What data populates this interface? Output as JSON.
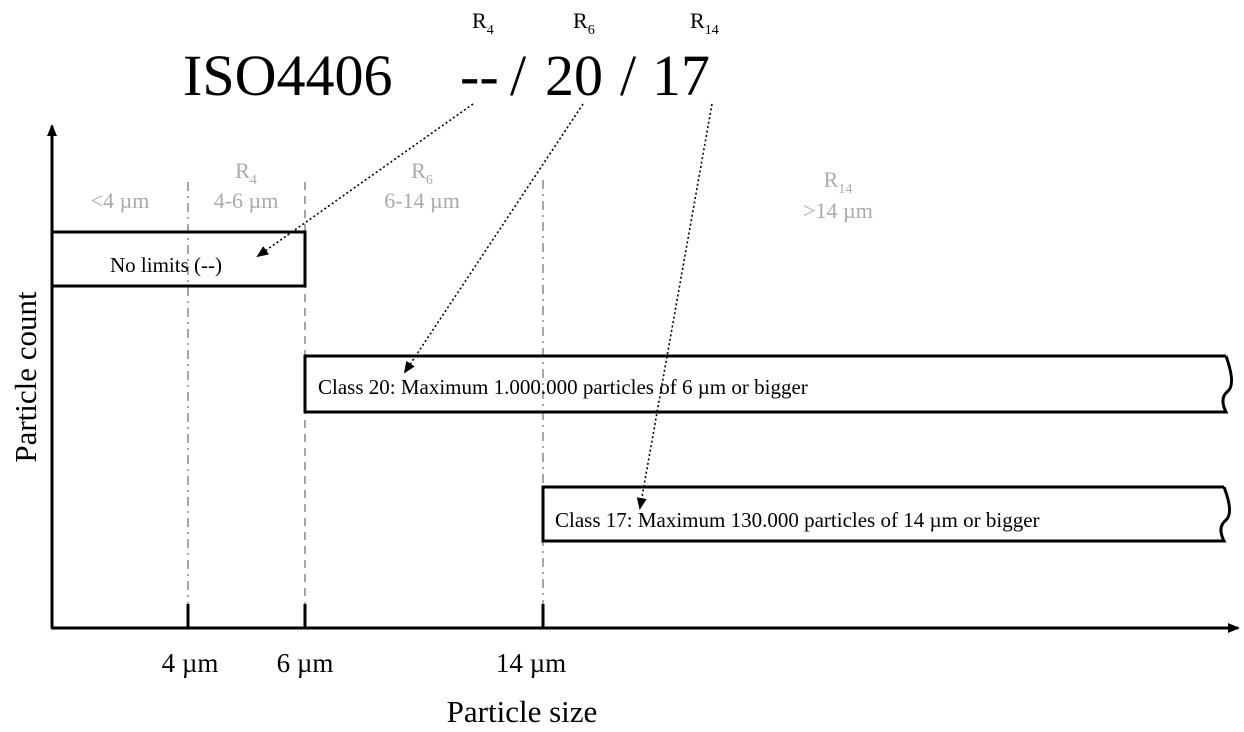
{
  "code": {
    "standard": "ISO4406",
    "value_r4": "--",
    "separator_1": "/",
    "value_r6": "20",
    "separator_2": "/",
    "value_r14": "17",
    "labels": [
      {
        "main": "R",
        "sub": "4"
      },
      {
        "main": "R",
        "sub": "6"
      },
      {
        "main": "R",
        "sub": "14"
      }
    ]
  },
  "ranges": [
    {
      "name": "",
      "sub": "",
      "size": "<4 µm"
    },
    {
      "name": "R",
      "sub": "4",
      "size": "4-6 µm"
    },
    {
      "name": "R",
      "sub": "6",
      "size": "6-14 µm"
    },
    {
      "name": "R",
      "sub": "14",
      "size": ">14 µm"
    }
  ],
  "boxes": {
    "r4": "No limits (--)",
    "r6": "Class 20: Maximum 1.000.000 particles of 6 µm or bigger",
    "r14": "Class 17: Maximum 130.000 particles of 14 µm or bigger"
  },
  "axes": {
    "x_title": "Particle size",
    "y_title": "Particle count",
    "ticks": [
      "4 µm",
      "6 µm",
      "14 µm"
    ]
  }
}
